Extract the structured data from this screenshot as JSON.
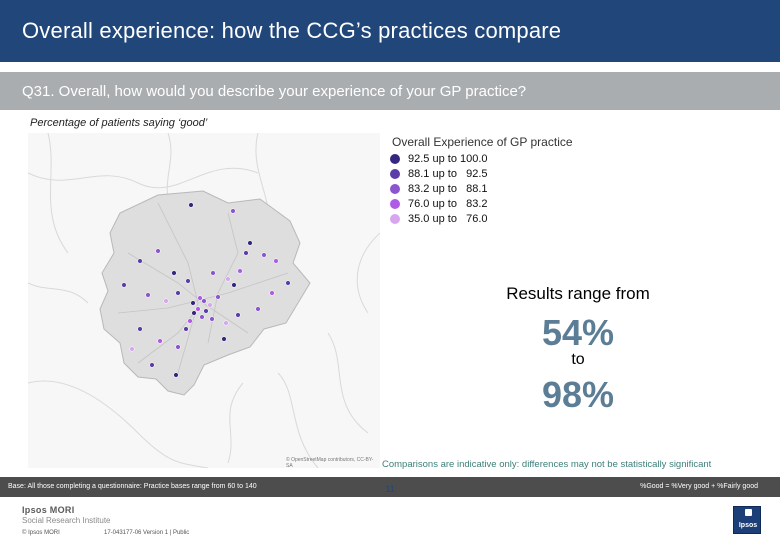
{
  "header": {
    "title": "Overall experience: how the CCG’s practices compare",
    "question": "Q31. Overall, how would you describe your experience of your GP practice?"
  },
  "subtitle": "Percentage of patients saying ‘good’",
  "map": {
    "credit": "© OpenStreetMap contributors, CC-BY-SA"
  },
  "legend": {
    "title": "Overall Experience of GP practice",
    "items": [
      {
        "label": "92.5 up to 100.0",
        "color": "#35267f"
      },
      {
        "label": "88.1 up to   92.5",
        "color": "#5a3da8"
      },
      {
        "label": "83.2 up to   88.1",
        "color": "#8b55cf"
      },
      {
        "label": "76.0 up to   83.2",
        "color": "#b05ae8"
      },
      {
        "label": "35.0 up to   76.0",
        "color": "#d7a6ef"
      }
    ]
  },
  "results": {
    "label": "Results range from",
    "low": "54%",
    "to": "to",
    "high": "98%"
  },
  "caveat": "Comparisons are indicative only: differences may not be statistically significant",
  "footer": {
    "base": "Base: All those completing a questionnaire: Practice bases range from 60 to 140",
    "calc": "%Good = %Very good + %Fairly good",
    "page": "11",
    "logo_line1": "Ipsos MORI",
    "logo_line2": "Social Research Institute",
    "copyright": "© Ipsos MORI",
    "job_ref": "17-043177-06 Version 1 | Public",
    "badge": "Ipsos"
  }
}
